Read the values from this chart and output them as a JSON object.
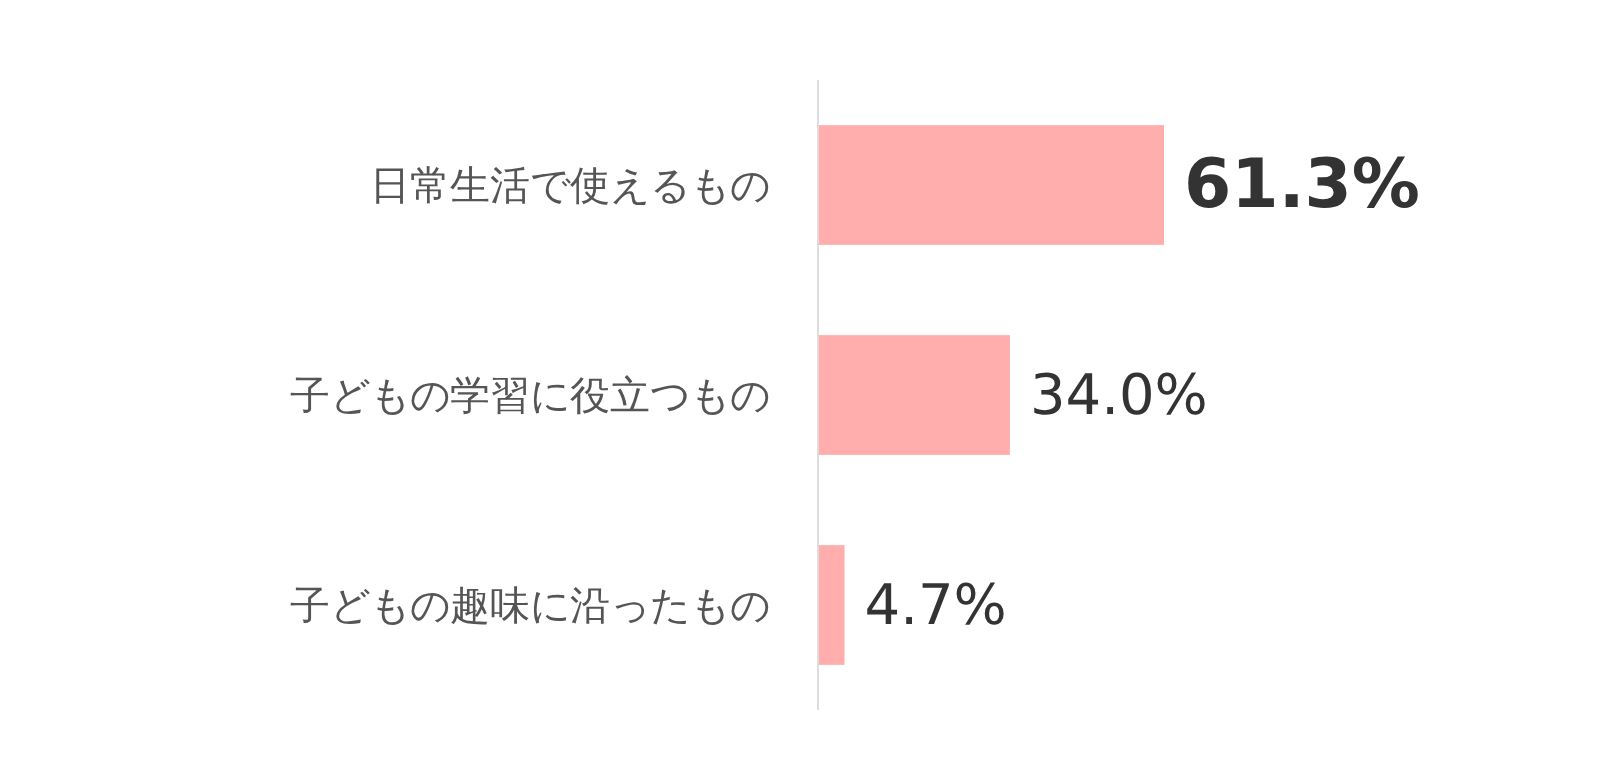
{
  "chart_data": {
    "type": "bar",
    "orientation": "horizontal",
    "categories": [
      "日常生活で使えるもの",
      "子どもの学習に役立つもの",
      "子どもの趣味に沿ったもの"
    ],
    "values": [
      61.3,
      34.0,
      4.7
    ],
    "value_labels": [
      "61.3%",
      "34.0%",
      "4.7%"
    ],
    "color": "#ffadad"
  }
}
